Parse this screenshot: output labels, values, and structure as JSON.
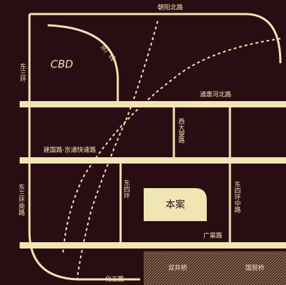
{
  "map": {
    "labels": {
      "top_road": "朝阳北路",
      "left_road": "东三环",
      "district": "CBD",
      "rail": "京广线",
      "right_road": "通惠河北路",
      "mid_vertical": "西大望路",
      "mid_horizontal": "建国路·京通快速路",
      "left_lower": "东三环南路",
      "center_vertical": "东四环",
      "right_vertical": "东四环中路",
      "project": "本案",
      "south_road": "广渠路",
      "bottom_road": "化工路",
      "bottom_area_1": "双井桥",
      "bottom_area_2": "国贸桥"
    }
  }
}
